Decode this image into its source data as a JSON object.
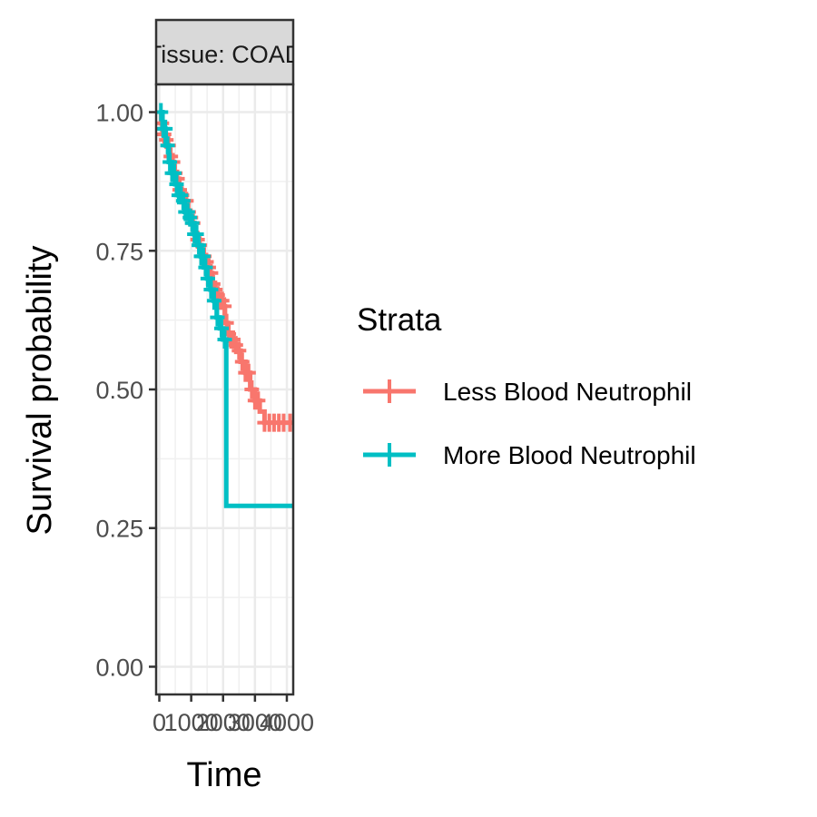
{
  "chart_data": {
    "type": "line",
    "subtype": "kaplan-meier step curve with censor marks",
    "facet_label": "Tissue: COAD",
    "xlabel": "Time",
    "ylabel": "Survival probability",
    "x_ticks": [
      0,
      1000,
      2000,
      3000,
      4000
    ],
    "x_tick_labels": [
      "0",
      "1000",
      "2000",
      "3000",
      "4000"
    ],
    "y_ticks": [
      0,
      0.25,
      0.5,
      0.75,
      1
    ],
    "y_tick_labels": [
      "0.00",
      "0.25",
      "0.50",
      "0.75",
      "1.00"
    ],
    "xlim": [
      -100,
      4200
    ],
    "ylim": [
      -0.05,
      1.05
    ],
    "grid": true,
    "legend": {
      "title": "Strata",
      "position": "right"
    },
    "series": [
      {
        "name": "Less Blood Neutrophil",
        "color": "#F8766D",
        "steps": [
          [
            0,
            1.0
          ],
          [
            60,
            0.98
          ],
          [
            120,
            0.96
          ],
          [
            180,
            0.95
          ],
          [
            240,
            0.94
          ],
          [
            300,
            0.92
          ],
          [
            380,
            0.91
          ],
          [
            460,
            0.89
          ],
          [
            540,
            0.88
          ],
          [
            620,
            0.86
          ],
          [
            700,
            0.85
          ],
          [
            780,
            0.84
          ],
          [
            860,
            0.82
          ],
          [
            940,
            0.81
          ],
          [
            1020,
            0.8
          ],
          [
            1100,
            0.78
          ],
          [
            1180,
            0.77
          ],
          [
            1260,
            0.76
          ],
          [
            1340,
            0.74
          ],
          [
            1420,
            0.73
          ],
          [
            1500,
            0.72
          ],
          [
            1580,
            0.71
          ],
          [
            1660,
            0.69
          ],
          [
            1740,
            0.68
          ],
          [
            1820,
            0.67
          ],
          [
            1900,
            0.66
          ],
          [
            1980,
            0.65
          ],
          [
            2060,
            0.62
          ],
          [
            2150,
            0.6
          ],
          [
            2250,
            0.59
          ],
          [
            2350,
            0.58
          ],
          [
            2450,
            0.57
          ],
          [
            2550,
            0.55
          ],
          [
            2700,
            0.53
          ],
          [
            2850,
            0.5
          ],
          [
            3000,
            0.48
          ],
          [
            3150,
            0.46
          ],
          [
            3300,
            0.44
          ],
          [
            4200,
            0.44
          ]
        ],
        "censor_times": [
          80,
          150,
          220,
          290,
          360,
          430,
          500,
          570,
          640,
          710,
          780,
          850,
          920,
          990,
          1060,
          1130,
          1200,
          1270,
          1340,
          1410,
          1480,
          1550,
          1620,
          1690,
          1760,
          1830,
          1900,
          1970,
          2040,
          2110,
          2180,
          2250,
          2320,
          2400,
          2500,
          2600,
          2700,
          2800,
          2900,
          3000,
          3100,
          3300,
          3450,
          3600,
          3750,
          3900,
          4100
        ]
      },
      {
        "name": "More Blood Neutrophil",
        "color": "#00BFC4",
        "steps": [
          [
            0,
            1.0
          ],
          [
            100,
            0.97
          ],
          [
            200,
            0.94
          ],
          [
            300,
            0.91
          ],
          [
            400,
            0.89
          ],
          [
            500,
            0.87
          ],
          [
            600,
            0.85
          ],
          [
            700,
            0.84
          ],
          [
            800,
            0.82
          ],
          [
            900,
            0.81
          ],
          [
            1000,
            0.8
          ],
          [
            1100,
            0.78
          ],
          [
            1200,
            0.76
          ],
          [
            1300,
            0.74
          ],
          [
            1400,
            0.72
          ],
          [
            1500,
            0.7
          ],
          [
            1600,
            0.68
          ],
          [
            1700,
            0.66
          ],
          [
            1800,
            0.63
          ],
          [
            1900,
            0.61
          ],
          [
            2000,
            0.59
          ],
          [
            2100,
            0.57
          ],
          [
            2100,
            0.29
          ],
          [
            4200,
            0.29
          ]
        ],
        "censor_times": [
          50,
          120,
          190,
          260,
          330,
          400,
          470,
          540,
          610,
          680,
          750,
          820,
          890,
          960,
          1030,
          1100,
          1170,
          1240,
          1310,
          1380,
          1450,
          1520,
          1620,
          1720,
          1820,
          1950,
          2050
        ]
      }
    ]
  }
}
